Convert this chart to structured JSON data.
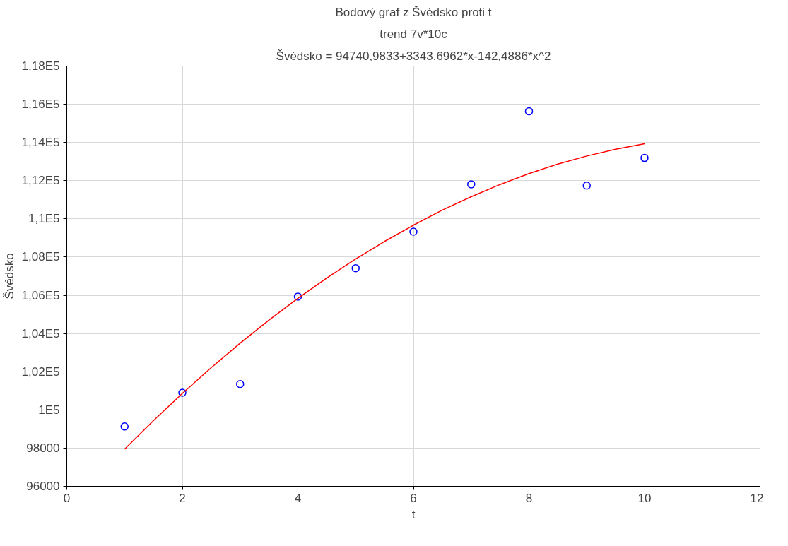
{
  "chart_data": {
    "type": "scatter",
    "title": "Bodový graf z Švédsko proti t",
    "subtitle": "trend 7v*10c",
    "annotations": [
      "Švédsko = 94740,9833+3343,6962*x-142,4886*x^2"
    ],
    "xlabel": "t",
    "ylabel": "Švédsko",
    "series": [
      {
        "color": "#0000ff",
        "marker": "circle",
        "x": [
          1,
          2,
          3,
          4,
          5,
          6,
          7,
          8,
          9,
          10
        ],
        "values": [
          99130,
          100900,
          101350,
          105930,
          107420,
          109330,
          111810,
          115630,
          111740,
          113190
        ]
      },
      {
        "type": "line",
        "color": "#ff0000",
        "line_style": "solid",
        "x": [
          1,
          1.5,
          2,
          2.5,
          3,
          3.5,
          4,
          4.5,
          5,
          5.5,
          6,
          6.5,
          7,
          7.5,
          8,
          8.5,
          9,
          9.5,
          10
        ],
        "values": [
          97940,
          99440,
          100860,
          102210,
          103490,
          104700,
          105840,
          106900,
          107900,
          108820,
          109670,
          110460,
          111160,
          111800,
          112370,
          112870,
          113290,
          113650,
          113930
        ]
      }
    ],
    "xlim": [
      0,
      12
    ],
    "xticks": [
      0,
      2,
      4,
      6,
      8,
      10,
      12
    ],
    "ylim": [
      96000,
      118000
    ],
    "yticks": [
      96000,
      98000,
      {
        "value": 100000,
        "label": "1E5"
      },
      {
        "value": 102000,
        "label": "1,02E5"
      },
      {
        "value": 104000,
        "label": "1,04E5"
      },
      {
        "value": 106000,
        "label": "1,06E5"
      },
      {
        "value": 108000,
        "label": "1,08E5"
      },
      {
        "value": 110000,
        "label": "1,1E5"
      },
      {
        "value": 112000,
        "label": "1,12E5"
      },
      {
        "value": 114000,
        "label": "1,14E5"
      },
      {
        "value": 116000,
        "label": "1,16E5"
      },
      {
        "value": 118000,
        "label": "1,18E5"
      }
    ],
    "grid": true
  }
}
